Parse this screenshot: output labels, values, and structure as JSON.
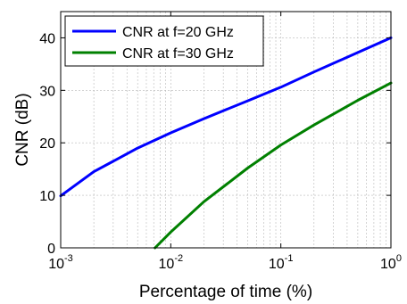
{
  "chart_data": {
    "type": "line",
    "xlabel": "Percentage of time (%)",
    "ylabel": "CNR (dB)",
    "xscale": "log",
    "xlim": [
      0.001,
      1
    ],
    "ylim": [
      0,
      45
    ],
    "grid": true,
    "legend_position": "top-left",
    "x_ticks": [
      {
        "value": 0.001,
        "base": "10",
        "exp": "-3"
      },
      {
        "value": 0.01,
        "base": "10",
        "exp": "-2"
      },
      {
        "value": 0.1,
        "base": "10",
        "exp": "-1"
      },
      {
        "value": 1,
        "base": "10",
        "exp": "0"
      }
    ],
    "y_ticks": [
      0,
      10,
      20,
      30,
      40
    ],
    "series": [
      {
        "name": "CNR at f=20 GHz",
        "color": "#0000ff",
        "x": [
          0.001,
          0.002,
          0.005,
          0.01,
          0.02,
          0.05,
          0.1,
          0.2,
          0.5,
          1
        ],
        "y": [
          9.9,
          14.5,
          19.0,
          21.9,
          24.6,
          28.0,
          30.6,
          33.5,
          37.2,
          40.0
        ]
      },
      {
        "name": "CNR at f=30 GHz",
        "color": "#008000",
        "x": [
          0.0072,
          0.01,
          0.02,
          0.05,
          0.1,
          0.2,
          0.5,
          1
        ],
        "y": [
          0,
          3.0,
          8.8,
          15.2,
          19.6,
          23.4,
          28.1,
          31.4
        ]
      }
    ]
  }
}
